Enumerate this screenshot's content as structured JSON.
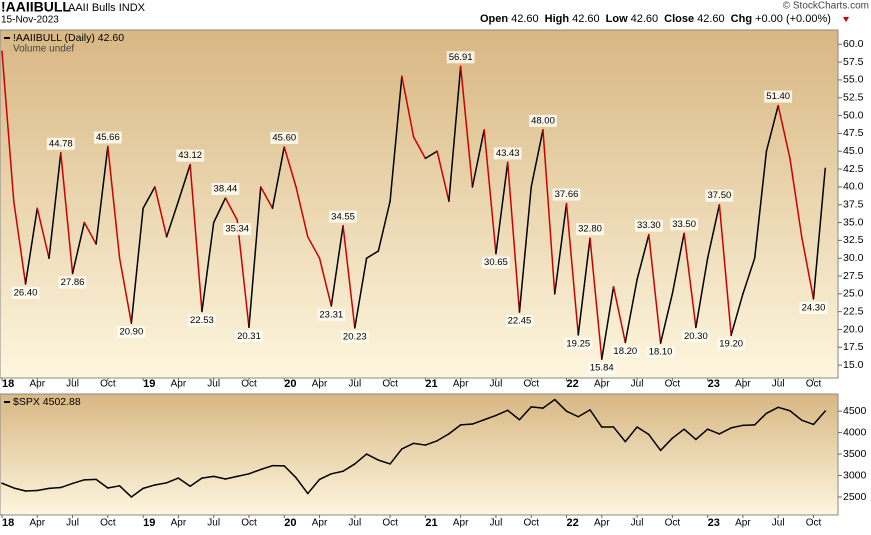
{
  "header": {
    "symbol": "!AAIIBULL",
    "description": "AAII Bulls INDX",
    "date": "15-Nov-2023",
    "quote": [
      {
        "label": "Open",
        "value": "42.60"
      },
      {
        "label": "High",
        "value": "42.60"
      },
      {
        "label": "Low",
        "value": "42.60"
      },
      {
        "label": "Close",
        "value": "42.60"
      },
      {
        "label": "Chg",
        "value": "+0.00 (+0.00%)"
      }
    ],
    "credit": "© StockCharts.com"
  },
  "chart_data": [
    {
      "type": "line",
      "note": "Volume undef",
      "x": [
        "2018-01",
        "2018-02",
        "2018-03",
        "2018-04",
        "2018-05",
        "2018-06",
        "2018-07",
        "2018-08",
        "2018-09",
        "2018-10",
        "2018-11",
        "2018-12",
        "2019-01",
        "2019-02",
        "2019-03",
        "2019-04",
        "2019-05",
        "2019-06",
        "2019-07",
        "2019-08",
        "2019-09",
        "2019-10",
        "2019-11",
        "2019-12",
        "2020-01",
        "2020-02",
        "2020-03",
        "2020-04",
        "2020-05",
        "2020-06",
        "2020-07",
        "2020-08",
        "2020-09",
        "2020-10",
        "2020-11",
        "2020-12",
        "2021-01",
        "2021-02",
        "2021-03",
        "2021-04",
        "2021-05",
        "2021-06",
        "2021-07",
        "2021-08",
        "2021-09",
        "2021-10",
        "2021-11",
        "2021-12",
        "2022-01",
        "2022-02",
        "2022-03",
        "2022-04",
        "2022-05",
        "2022-06",
        "2022-07",
        "2022-08",
        "2022-09",
        "2022-10",
        "2022-11",
        "2022-12",
        "2023-01",
        "2023-02",
        "2023-03",
        "2023-04",
        "2023-05",
        "2023-06",
        "2023-07",
        "2023-08",
        "2023-09",
        "2023-10",
        "2023-11"
      ],
      "series": [
        {
          "name": "!AAIIBULL (Daily) 42.60",
          "color": "#000000",
          "down_color": "#cc0000",
          "values": [
            59,
            38,
            26.4,
            37,
            30,
            44.78,
            27.86,
            35,
            32,
            45.66,
            30,
            20.9,
            37,
            40,
            33,
            38,
            43.12,
            22.53,
            35,
            38.44,
            35.34,
            20.31,
            40,
            37,
            45.6,
            40,
            33,
            30,
            23.31,
            34.55,
            20.23,
            30,
            31,
            38,
            55.5,
            47,
            44,
            45,
            38,
            56.91,
            40,
            48,
            30.65,
            43.43,
            22.45,
            40,
            48,
            25,
            37.66,
            19.25,
            32.8,
            15.84,
            26,
            18.2,
            27,
            33.3,
            18.1,
            25,
            33.5,
            20.3,
            30,
            37.5,
            19.2,
            25,
            30,
            45,
            51.4,
            44,
            33,
            24.3,
            42.6
          ],
          "value_labels": [
            null,
            null,
            "26.40",
            null,
            null,
            "44.78",
            "27.86",
            null,
            null,
            "45.66",
            null,
            "20.90",
            null,
            null,
            null,
            null,
            "43.12",
            "22.53",
            null,
            "38.44",
            "35.34",
            "20.31",
            null,
            null,
            "45.60",
            null,
            null,
            null,
            "23.31",
            "34.55",
            "20.23",
            null,
            null,
            null,
            null,
            null,
            null,
            null,
            null,
            "56.91",
            null,
            null,
            "30.65",
            "43.43",
            "22.45",
            null,
            "48.00",
            null,
            "37.66",
            "19.25",
            "32.80",
            "15.84",
            null,
            "18.20",
            null,
            "33.30",
            "18.10",
            null,
            "33.50",
            "20.30",
            null,
            "37.50",
            "19.20",
            null,
            null,
            null,
            "51.40",
            null,
            null,
            "24.30",
            null
          ]
        }
      ],
      "xlim": [
        "2018-01",
        "2023-12"
      ],
      "xticks": [
        {
          "value": "2018-01",
          "label": "18"
        },
        {
          "value": "2018-04",
          "label": "Apr"
        },
        {
          "value": "2018-07",
          "label": "Jul"
        },
        {
          "value": "2018-10",
          "label": "Oct"
        },
        {
          "value": "2019-01",
          "label": "19"
        },
        {
          "value": "2019-04",
          "label": "Apr"
        },
        {
          "value": "2019-07",
          "label": "Jul"
        },
        {
          "value": "2019-10",
          "label": "Oct"
        },
        {
          "value": "2020-01",
          "label": "20"
        },
        {
          "value": "2020-04",
          "label": "Apr"
        },
        {
          "value": "2020-07",
          "label": "Jul"
        },
        {
          "value": "2020-10",
          "label": "Oct"
        },
        {
          "value": "2021-01",
          "label": "21"
        },
        {
          "value": "2021-04",
          "label": "Apr"
        },
        {
          "value": "2021-07",
          "label": "Jul"
        },
        {
          "value": "2021-10",
          "label": "Oct"
        },
        {
          "value": "2022-01",
          "label": "22"
        },
        {
          "value": "2022-04",
          "label": "Apr"
        },
        {
          "value": "2022-07",
          "label": "Jul"
        },
        {
          "value": "2022-10",
          "label": "Oct"
        },
        {
          "value": "2023-01",
          "label": "23"
        },
        {
          "value": "2023-04",
          "label": "Apr"
        },
        {
          "value": "2023-07",
          "label": "Jul"
        },
        {
          "value": "2023-10",
          "label": "Oct"
        }
      ],
      "ylim": [
        13.2,
        62
      ],
      "yticks": [
        {
          "value": 15,
          "label": "15.0"
        },
        {
          "value": 17.5,
          "label": "17.5"
        },
        {
          "value": 20,
          "label": "20.0"
        },
        {
          "value": 22.5,
          "label": "22.5"
        },
        {
          "value": 25,
          "label": "25.0"
        },
        {
          "value": 27.5,
          "label": "27.5"
        },
        {
          "value": 30,
          "label": "30.0"
        },
        {
          "value": 32.5,
          "label": "32.5"
        },
        {
          "value": 35,
          "label": "35.0"
        },
        {
          "value": 37.5,
          "label": "37.5"
        },
        {
          "value": 40,
          "label": "40.0"
        },
        {
          "value": 42.5,
          "label": "42.5"
        },
        {
          "value": 45,
          "label": "45.0"
        },
        {
          "value": 47.5,
          "label": "47.5"
        },
        {
          "value": 50,
          "label": "50.0"
        },
        {
          "value": 52.5,
          "label": "52.5"
        },
        {
          "value": 55,
          "label": "55.0"
        },
        {
          "value": 57.5,
          "label": "57.5"
        },
        {
          "value": 60,
          "label": "60.0"
        }
      ]
    },
    {
      "type": "line",
      "x": [
        "2018-01",
        "2018-02",
        "2018-03",
        "2018-04",
        "2018-05",
        "2018-06",
        "2018-07",
        "2018-08",
        "2018-09",
        "2018-10",
        "2018-11",
        "2018-12",
        "2019-01",
        "2019-02",
        "2019-03",
        "2019-04",
        "2019-05",
        "2019-06",
        "2019-07",
        "2019-08",
        "2019-09",
        "2019-10",
        "2019-11",
        "2019-12",
        "2020-01",
        "2020-02",
        "2020-03",
        "2020-04",
        "2020-05",
        "2020-06",
        "2020-07",
        "2020-08",
        "2020-09",
        "2020-10",
        "2020-11",
        "2020-12",
        "2021-01",
        "2021-02",
        "2021-03",
        "2021-04",
        "2021-05",
        "2021-06",
        "2021-07",
        "2021-08",
        "2021-09",
        "2021-10",
        "2021-11",
        "2021-12",
        "2022-01",
        "2022-02",
        "2022-03",
        "2022-04",
        "2022-05",
        "2022-06",
        "2022-07",
        "2022-08",
        "2022-09",
        "2022-10",
        "2022-11",
        "2022-12",
        "2023-01",
        "2023-02",
        "2023-03",
        "2023-04",
        "2023-05",
        "2023-06",
        "2023-07",
        "2023-08",
        "2023-09",
        "2023-10",
        "2023-11"
      ],
      "series": [
        {
          "name": "$SPX 4502.88",
          "color": "#000000",
          "values": [
            2820,
            2710,
            2640,
            2650,
            2700,
            2720,
            2815,
            2900,
            2910,
            2710,
            2760,
            2500,
            2700,
            2780,
            2830,
            2940,
            2750,
            2940,
            2980,
            2920,
            2980,
            3040,
            3140,
            3230,
            3225,
            2950,
            2580,
            2910,
            3040,
            3100,
            3270,
            3500,
            3360,
            3270,
            3620,
            3750,
            3710,
            3810,
            3970,
            4180,
            4200,
            4300,
            4400,
            4520,
            4300,
            4600,
            4570,
            4770,
            4500,
            4370,
            4530,
            4130,
            4130,
            3790,
            4130,
            3955,
            3585,
            3870,
            4080,
            3840,
            4080,
            3970,
            4110,
            4170,
            4180,
            4450,
            4590,
            4510,
            4290,
            4190,
            4502.88
          ]
        }
      ],
      "xlim": [
        "2018-01",
        "2023-12"
      ],
      "xticks": [
        {
          "value": "2018-01",
          "label": "18"
        },
        {
          "value": "2018-04",
          "label": "Apr"
        },
        {
          "value": "2018-07",
          "label": "Jul"
        },
        {
          "value": "2018-10",
          "label": "Oct"
        },
        {
          "value": "2019-01",
          "label": "19"
        },
        {
          "value": "2019-04",
          "label": "Apr"
        },
        {
          "value": "2019-07",
          "label": "Jul"
        },
        {
          "value": "2019-10",
          "label": "Oct"
        },
        {
          "value": "2020-01",
          "label": "20"
        },
        {
          "value": "2020-04",
          "label": "Apr"
        },
        {
          "value": "2020-07",
          "label": "Jul"
        },
        {
          "value": "2020-10",
          "label": "Oct"
        },
        {
          "value": "2021-01",
          "label": "21"
        },
        {
          "value": "2021-04",
          "label": "Apr"
        },
        {
          "value": "2021-07",
          "label": "Jul"
        },
        {
          "value": "2021-10",
          "label": "Oct"
        },
        {
          "value": "2022-01",
          "label": "22"
        },
        {
          "value": "2022-04",
          "label": "Apr"
        },
        {
          "value": "2022-07",
          "label": "Jul"
        },
        {
          "value": "2022-10",
          "label": "Oct"
        },
        {
          "value": "2023-01",
          "label": "23"
        },
        {
          "value": "2023-04",
          "label": "Apr"
        },
        {
          "value": "2023-07",
          "label": "Jul"
        },
        {
          "value": "2023-10",
          "label": "Oct"
        }
      ],
      "ylim": [
        2080,
        4900
      ],
      "yticks": [
        2500,
        3000,
        3500,
        4000,
        4500
      ]
    }
  ]
}
